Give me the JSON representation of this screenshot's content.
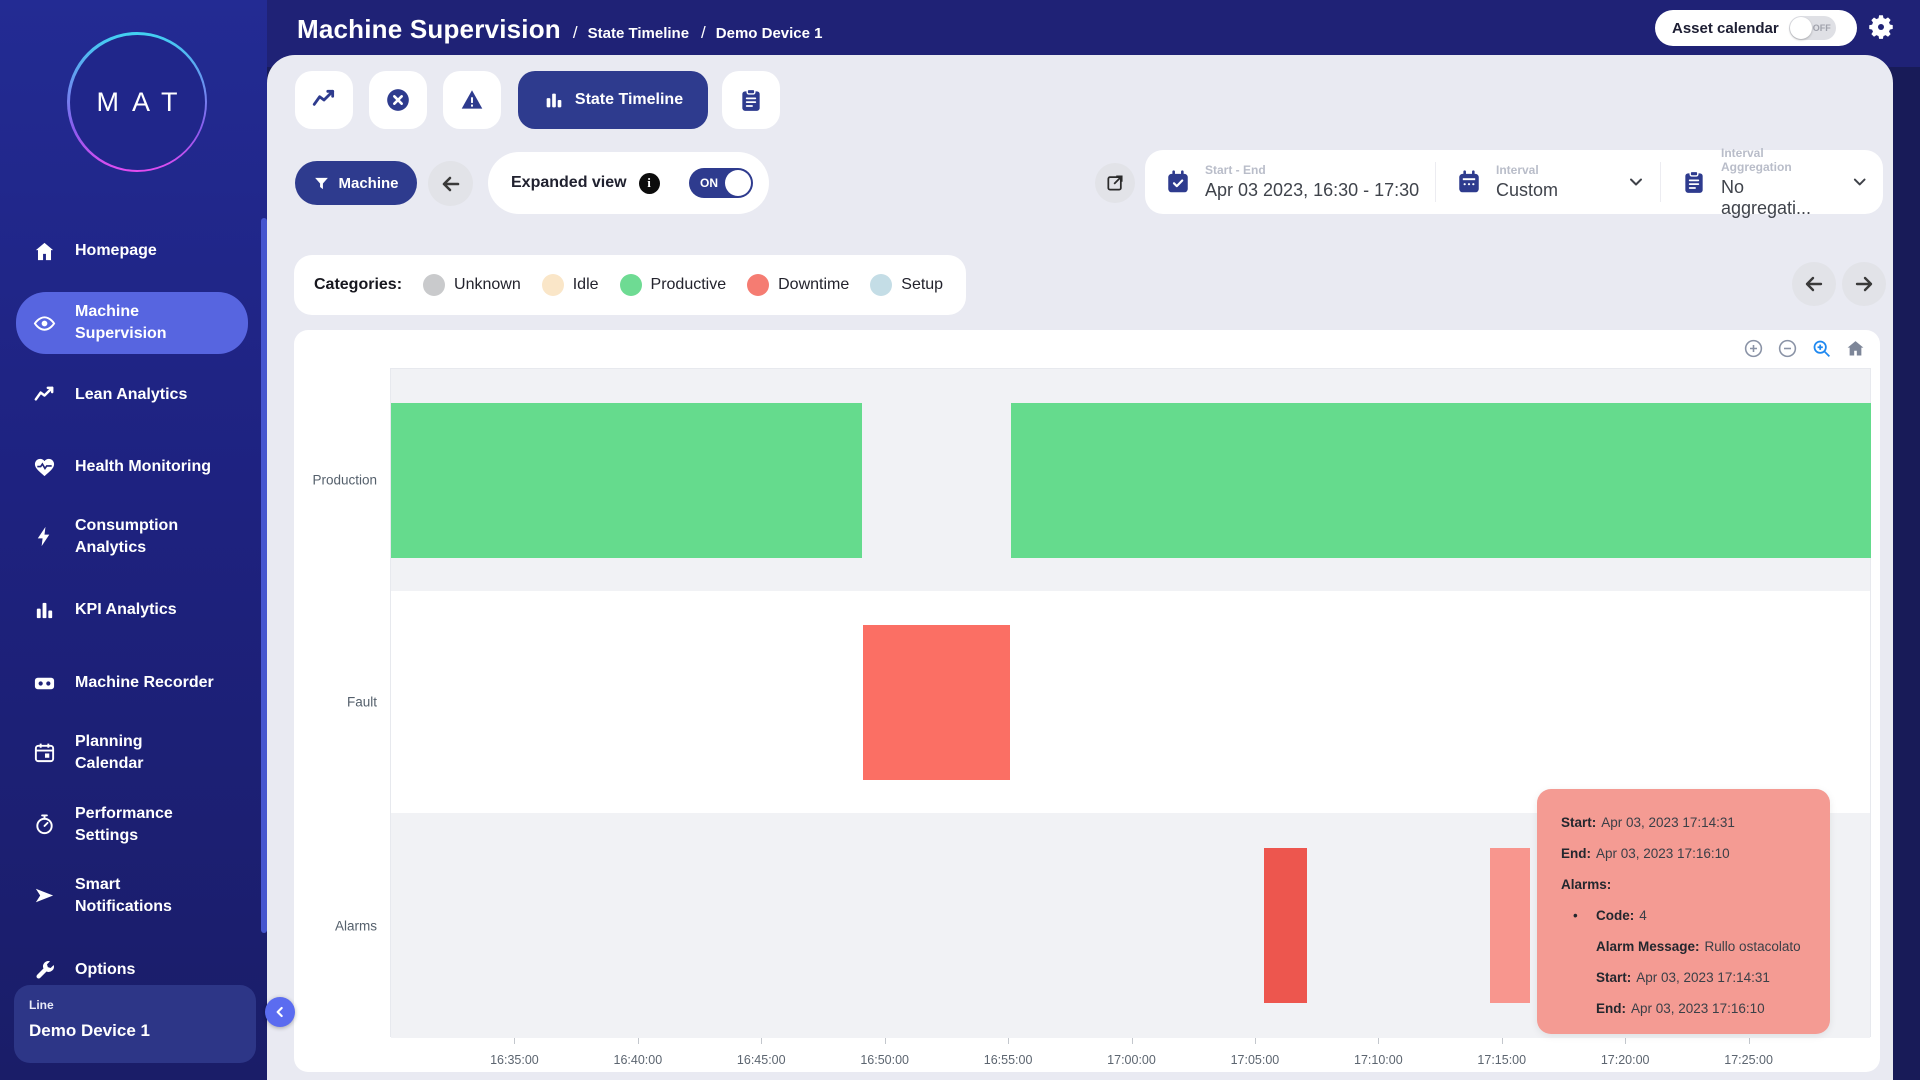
{
  "header": {
    "title": "Machine Supervision",
    "breadcrumb_sep": "/",
    "breadcrumbs": [
      "State Timeline",
      "Demo Device 1"
    ],
    "asset_calendar_label": "Asset calendar",
    "asset_calendar_state": "OFF"
  },
  "sidebar": {
    "logo_text": "MAT",
    "items": [
      {
        "label": "Homepage",
        "icon": "home-icon"
      },
      {
        "label": "Machine\nSupervision",
        "icon": "eye-icon",
        "active": true
      },
      {
        "label": "Lean Analytics",
        "icon": "trend-icon"
      },
      {
        "label": "Health Monitoring",
        "icon": "heart-pulse-icon"
      },
      {
        "label": "Consumption\nAnalytics",
        "icon": "bolt-icon"
      },
      {
        "label": "KPI Analytics",
        "icon": "bar-chart-icon"
      },
      {
        "label": "Machine Recorder",
        "icon": "recorder-icon"
      },
      {
        "label": "Planning\nCalendar",
        "icon": "calendar-icon"
      },
      {
        "label": "Performance\nSettings",
        "icon": "stopwatch-icon"
      },
      {
        "label": "Smart\nNotifications",
        "icon": "send-icon"
      },
      {
        "label": "Options",
        "icon": "wrench-icon"
      }
    ],
    "device_card": {
      "line_label": "Line",
      "device_name": "Demo Device 1"
    }
  },
  "tabs": {
    "items": [
      {
        "icon": "trend-line-icon"
      },
      {
        "icon": "error-circle-icon"
      },
      {
        "icon": "warning-triangle-icon"
      },
      {
        "icon": "bar-chart-icon",
        "label": "State Timeline",
        "active": true
      },
      {
        "icon": "report-icon"
      }
    ]
  },
  "filters": {
    "machine_button": "Machine",
    "expanded_view_label": "Expanded view",
    "toggle_state": "ON"
  },
  "date_controls": {
    "start_end": {
      "label": "Start - End",
      "value": "Apr 03 2023, 16:30 - 17:30"
    },
    "interval": {
      "label": "Interval",
      "value": "Custom"
    },
    "aggregation": {
      "label": "Interval Aggregation",
      "value": "No aggregati..."
    }
  },
  "legend": {
    "title": "Categories:",
    "items": [
      {
        "label": "Unknown",
        "color": "#c9cacc"
      },
      {
        "label": "Idle",
        "color": "#fae6c8"
      },
      {
        "label": "Productive",
        "color": "#6edb93"
      },
      {
        "label": "Downtime",
        "color": "#f57c72"
      },
      {
        "label": "Setup",
        "color": "#c4dde6"
      }
    ]
  },
  "chart_data": {
    "type": "timeline",
    "x_start": "16:30:00",
    "x_end": "17:30:00",
    "ticks": [
      "16:35:00",
      "16:40:00",
      "16:45:00",
      "16:50:00",
      "16:55:00",
      "17:00:00",
      "17:05:00",
      "17:10:00",
      "17:15:00",
      "17:20:00",
      "17:25:00"
    ],
    "band_colors": [
      "#f1f2f5",
      "#ffffff",
      "#f1f2f5"
    ],
    "rows": [
      {
        "label": "Production",
        "segments": [
          {
            "start": "16:30:00",
            "end": "16:49:08",
            "category": "Productive",
            "color": "#65db8d"
          },
          {
            "start": "16:55:08",
            "end": "17:30:00",
            "category": "Productive",
            "color": "#65db8d"
          }
        ]
      },
      {
        "label": "Fault",
        "segments": [
          {
            "start": "16:49:08",
            "end": "16:55:08",
            "category": "Downtime",
            "color": "#fb6f64"
          }
        ]
      },
      {
        "label": "Alarms",
        "segments": [
          {
            "start": "17:05:21",
            "end": "17:07:10",
            "category": "Alarm",
            "color": "#ed564e"
          },
          {
            "start": "17:14:31",
            "end": "17:16:10",
            "category": "Alarm",
            "color": "#f8968e",
            "highlighted": true
          }
        ]
      }
    ]
  },
  "tooltip": {
    "lines": [
      {
        "label": "Start:",
        "value": "Apr 03, 2023 17:14:31"
      },
      {
        "label": "End:",
        "value": "Apr 03, 2023 17:16:10"
      },
      {
        "label": "Alarms:",
        "value": ""
      },
      {
        "label": "Code:",
        "value": "4"
      },
      {
        "label": "Alarm Message:",
        "value": "Rullo ostacolato"
      },
      {
        "label": "Start:",
        "value": "Apr 03, 2023 17:14:31"
      },
      {
        "label": "End:",
        "value": "Apr 03, 2023 17:16:10"
      }
    ]
  }
}
